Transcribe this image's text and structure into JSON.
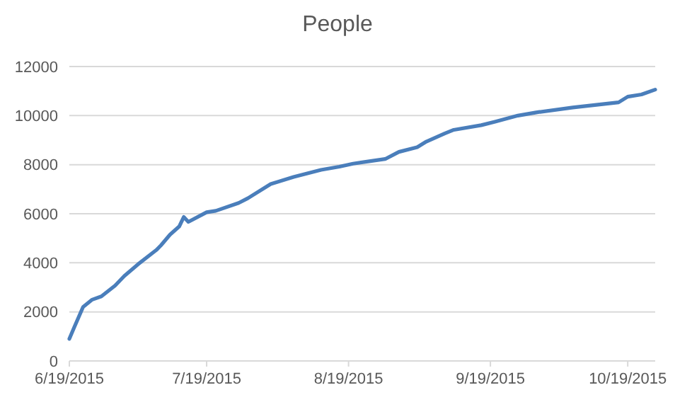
{
  "chart_data": {
    "type": "line",
    "title": "People",
    "x": [
      "2015-06-19",
      "2015-06-20",
      "2015-06-22",
      "2015-06-24",
      "2015-06-26",
      "2015-06-29",
      "2015-07-01",
      "2015-07-04",
      "2015-07-08",
      "2015-07-09",
      "2015-07-11",
      "2015-07-13",
      "2015-07-14",
      "2015-07-15",
      "2015-07-19",
      "2015-07-21",
      "2015-07-26",
      "2015-07-28",
      "2015-08-02",
      "2015-08-07",
      "2015-08-13",
      "2015-08-17",
      "2015-08-20",
      "2015-08-27",
      "2015-08-30",
      "2015-09-03",
      "2015-09-05",
      "2015-09-09",
      "2015-09-11",
      "2015-09-17",
      "2015-09-20",
      "2015-09-25",
      "2015-09-29",
      "2015-10-07",
      "2015-10-17",
      "2015-10-19",
      "2015-10-22",
      "2015-10-25"
    ],
    "series": [
      {
        "color": "#4a7ebb",
        "values": [
          900,
          1340,
          2200,
          2500,
          2630,
          3070,
          3460,
          3940,
          4520,
          4710,
          5150,
          5480,
          5870,
          5670,
          6060,
          6120,
          6440,
          6630,
          7210,
          7500,
          7790,
          7920,
          8040,
          8230,
          8520,
          8710,
          8940,
          9270,
          9420,
          9610,
          9750,
          10000,
          10130,
          10330,
          10540,
          10770,
          10860,
          11060
        ]
      }
    ],
    "xlim": [
      "2015-06-19",
      "2015-10-25"
    ],
    "xticks": [
      {
        "value": "2015-06-19",
        "label": "6/19/2015"
      },
      {
        "value": "2015-07-19",
        "label": "7/19/2015"
      },
      {
        "value": "2015-08-19",
        "label": "8/19/2015"
      },
      {
        "value": "2015-09-19",
        "label": "9/19/2015"
      },
      {
        "value": "2015-10-19",
        "label": "10/19/2015"
      }
    ],
    "ylim": [
      0,
      12000
    ],
    "yticks": [
      0,
      2000,
      4000,
      6000,
      8000,
      10000,
      12000
    ],
    "grid": "y",
    "marker": "none",
    "line_style": "solid"
  }
}
